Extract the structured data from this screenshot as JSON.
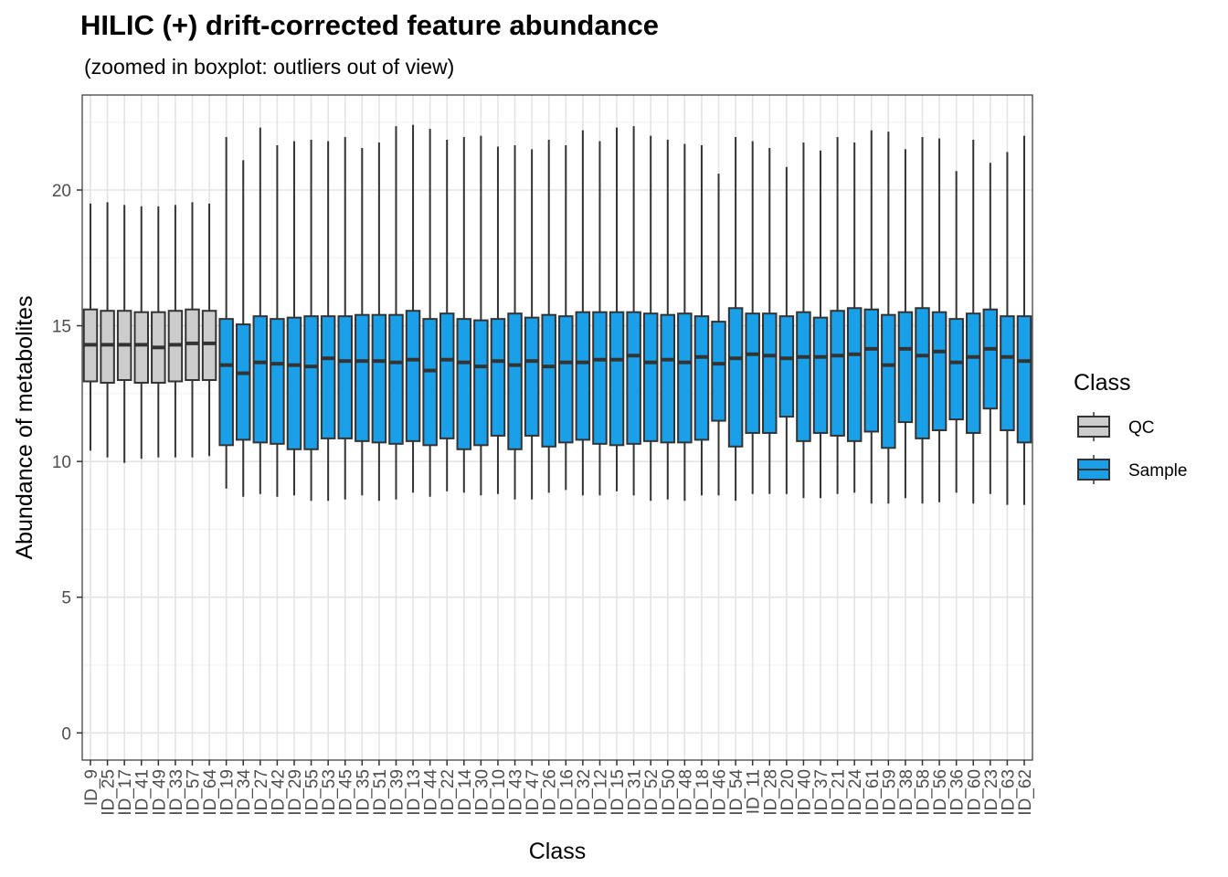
{
  "chart_data": {
    "type": "boxplot",
    "title": "HILIC (+) drift-corrected feature abundance",
    "subtitle": "(zoomed in boxplot: outliers out of view)",
    "xlabel": "Class",
    "ylabel": "Abundance of metabolites",
    "ylim": [
      -1,
      23.5
    ],
    "yticks": [
      0,
      5,
      10,
      15,
      20
    ],
    "legend": {
      "title": "Class",
      "position": "right",
      "entries": [
        {
          "label": "QC",
          "color": "#cccccc"
        },
        {
          "label": "Sample",
          "color": "#1aa0e8"
        }
      ]
    },
    "stroke_color": "#333333",
    "categories": [
      "ID_9",
      "ID_25",
      "ID_17",
      "ID_41",
      "ID_49",
      "ID_33",
      "ID_57",
      "ID_64",
      "ID_19",
      "ID_34",
      "ID_27",
      "ID_42",
      "ID_29",
      "ID_55",
      "ID_53",
      "ID_45",
      "ID_35",
      "ID_51",
      "ID_39",
      "ID_13",
      "ID_44",
      "ID_22",
      "ID_14",
      "ID_30",
      "ID_10",
      "ID_43",
      "ID_47",
      "ID_26",
      "ID_16",
      "ID_32",
      "ID_12",
      "ID_15",
      "ID_31",
      "ID_52",
      "ID_50",
      "ID_48",
      "ID_18",
      "ID_46",
      "ID_54",
      "ID_11",
      "ID_28",
      "ID_20",
      "ID_40",
      "ID_37",
      "ID_21",
      "ID_24",
      "ID_61",
      "ID_59",
      "ID_38",
      "ID_58",
      "ID_56",
      "ID_36",
      "ID_60",
      "ID_23",
      "ID_63",
      "ID_62"
    ],
    "groups": [
      "QC",
      "QC",
      "QC",
      "QC",
      "QC",
      "QC",
      "QC",
      "QC",
      "Sample",
      "Sample",
      "Sample",
      "Sample",
      "Sample",
      "Sample",
      "Sample",
      "Sample",
      "Sample",
      "Sample",
      "Sample",
      "Sample",
      "Sample",
      "Sample",
      "Sample",
      "Sample",
      "Sample",
      "Sample",
      "Sample",
      "Sample",
      "Sample",
      "Sample",
      "Sample",
      "Sample",
      "Sample",
      "Sample",
      "Sample",
      "Sample",
      "Sample",
      "Sample",
      "Sample",
      "Sample",
      "Sample",
      "Sample",
      "Sample",
      "Sample",
      "Sample",
      "Sample",
      "Sample",
      "Sample",
      "Sample",
      "Sample",
      "Sample",
      "Sample",
      "Sample",
      "Sample",
      "Sample",
      "Sample"
    ],
    "whisker_low": [
      10.4,
      10.15,
      9.95,
      10.1,
      10.15,
      10.15,
      10.15,
      10.2,
      9.0,
      8.7,
      8.8,
      8.7,
      8.75,
      8.55,
      8.55,
      8.6,
      8.75,
      8.55,
      8.6,
      8.85,
      8.7,
      8.9,
      8.85,
      8.75,
      8.8,
      8.6,
      8.6,
      8.85,
      8.95,
      8.75,
      8.75,
      8.9,
      8.75,
      8.55,
      8.6,
      8.55,
      8.75,
      8.75,
      8.55,
      8.8,
      8.8,
      8.8,
      8.65,
      8.65,
      8.8,
      8.85,
      8.45,
      8.45,
      8.65,
      8.45,
      8.5,
      8.85,
      8.45,
      8.8,
      8.4,
      8.4
    ],
    "q1": [
      12.95,
      12.9,
      13.0,
      12.9,
      12.9,
      12.95,
      13.0,
      13.0,
      10.6,
      10.8,
      10.7,
      10.65,
      10.45,
      10.45,
      10.85,
      10.85,
      10.75,
      10.7,
      10.65,
      10.75,
      10.6,
      10.85,
      10.45,
      10.6,
      10.95,
      10.45,
      10.95,
      10.55,
      10.7,
      10.8,
      10.65,
      10.6,
      10.65,
      10.75,
      10.7,
      10.7,
      10.8,
      11.5,
      10.55,
      11.05,
      11.05,
      11.65,
      10.75,
      11.05,
      10.95,
      10.75,
      11.1,
      10.5,
      11.45,
      10.85,
      11.15,
      11.55,
      11.05,
      11.95,
      11.15,
      10.7
    ],
    "median": [
      14.3,
      14.3,
      14.3,
      14.3,
      14.2,
      14.3,
      14.35,
      14.35,
      13.55,
      13.25,
      13.65,
      13.6,
      13.55,
      13.5,
      13.8,
      13.7,
      13.7,
      13.7,
      13.65,
      13.75,
      13.35,
      13.75,
      13.65,
      13.5,
      13.7,
      13.55,
      13.7,
      13.5,
      13.65,
      13.65,
      13.75,
      13.75,
      13.9,
      13.65,
      13.75,
      13.65,
      13.85,
      13.6,
      13.8,
      13.95,
      13.9,
      13.8,
      13.85,
      13.85,
      13.9,
      13.95,
      14.15,
      13.55,
      14.15,
      13.9,
      14.05,
      13.65,
      13.85,
      14.15,
      13.85,
      13.7
    ],
    "q3": [
      15.6,
      15.55,
      15.55,
      15.5,
      15.5,
      15.55,
      15.6,
      15.55,
      15.25,
      15.05,
      15.35,
      15.25,
      15.3,
      15.35,
      15.35,
      15.35,
      15.4,
      15.4,
      15.4,
      15.55,
      15.25,
      15.45,
      15.25,
      15.2,
      15.25,
      15.45,
      15.3,
      15.4,
      15.35,
      15.5,
      15.5,
      15.5,
      15.5,
      15.45,
      15.4,
      15.45,
      15.35,
      15.15,
      15.65,
      15.45,
      15.45,
      15.35,
      15.5,
      15.3,
      15.55,
      15.65,
      15.6,
      15.4,
      15.5,
      15.65,
      15.5,
      15.25,
      15.45,
      15.6,
      15.35,
      15.35
    ],
    "whisker_high": [
      19.5,
      19.55,
      19.45,
      19.4,
      19.4,
      19.45,
      19.55,
      19.5,
      21.95,
      21.1,
      22.3,
      21.65,
      21.8,
      21.85,
      21.8,
      21.95,
      21.55,
      21.75,
      22.35,
      22.4,
      22.25,
      21.85,
      21.95,
      22.0,
      21.6,
      21.65,
      21.5,
      21.85,
      21.65,
      22.2,
      21.8,
      22.3,
      22.35,
      22.0,
      21.85,
      21.7,
      21.65,
      20.6,
      21.95,
      21.8,
      21.55,
      20.85,
      21.75,
      21.45,
      21.95,
      21.75,
      22.2,
      22.15,
      21.5,
      21.95,
      21.9,
      20.7,
      21.85,
      21.0,
      21.4,
      22.0
    ]
  }
}
